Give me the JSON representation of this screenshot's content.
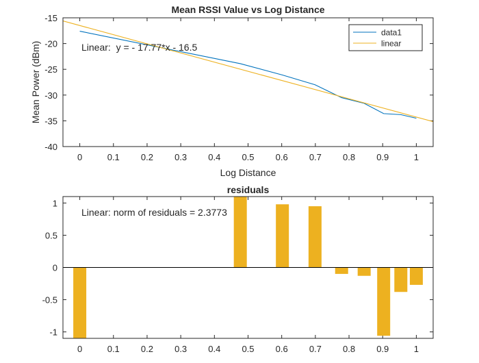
{
  "chart_data": [
    {
      "type": "line",
      "title": "Mean RSSI Value vs Log Distance",
      "xlabel": "Log Distance",
      "ylabel": "Mean Power (dBm)",
      "xlim": [
        -0.05,
        1.05
      ],
      "ylim": [
        -40,
        -15
      ],
      "xticks": [
        0,
        0.1,
        0.2,
        0.3,
        0.4,
        0.5,
        0.6,
        0.7,
        0.8,
        0.9,
        1
      ],
      "xtick_labels": [
        "0",
        "0.1",
        "0.2",
        "0.3",
        "0.4",
        "0.5",
        "0.6",
        "0.7",
        "0.8",
        "0.9",
        "1"
      ],
      "yticks": [
        -40,
        -35,
        -30,
        -25,
        -20,
        -15
      ],
      "ytick_labels": [
        "-40",
        "-35",
        "-30",
        "-25",
        "-20",
        "-15"
      ],
      "grid": false,
      "legend_position": "top-right",
      "annotation": "Linear:  y = - 17.77*x - 16.5",
      "series": [
        {
          "name": "data1",
          "color": "#0072bd",
          "x": [
            0,
            0.477,
            0.602,
            0.699,
            0.778,
            0.845,
            0.903,
            0.954,
            1.0
          ],
          "y": [
            -17.6,
            -23.9,
            -26.1,
            -28.0,
            -30.5,
            -31.6,
            -33.6,
            -33.8,
            -34.5
          ]
        },
        {
          "name": "linear",
          "color": "#edb120",
          "fit": {
            "slope": -17.77,
            "intercept": -16.5
          },
          "x": [
            -0.05,
            1.05
          ],
          "y": [
            -15.61,
            -35.16
          ]
        }
      ]
    },
    {
      "type": "bar",
      "title": "residuals",
      "xlim": [
        -0.05,
        1.05
      ],
      "ylim": [
        -1.1,
        1.1
      ],
      "xticks": [
        0,
        0.1,
        0.2,
        0.3,
        0.4,
        0.5,
        0.6,
        0.7,
        0.8,
        0.9,
        1
      ],
      "xtick_labels": [
        "0",
        "0.1",
        "0.2",
        "0.3",
        "0.4",
        "0.5",
        "0.6",
        "0.7",
        "0.8",
        "0.9",
        "1"
      ],
      "yticks": [
        -1,
        -0.5,
        0,
        0.5,
        1
      ],
      "ytick_labels": [
        "-1",
        "-0.5",
        "0",
        "0.5",
        "1"
      ],
      "grid": false,
      "annotation": "Linear: norm of residuals = 2.3773",
      "bar_color": "#edb120",
      "x": [
        0,
        0.477,
        0.602,
        0.699,
        0.778,
        0.845,
        0.903,
        0.954,
        1.0
      ],
      "values": [
        -1.12,
        1.12,
        0.98,
        0.95,
        -0.1,
        -0.13,
        -1.06,
        -0.38,
        -0.27
      ]
    }
  ]
}
